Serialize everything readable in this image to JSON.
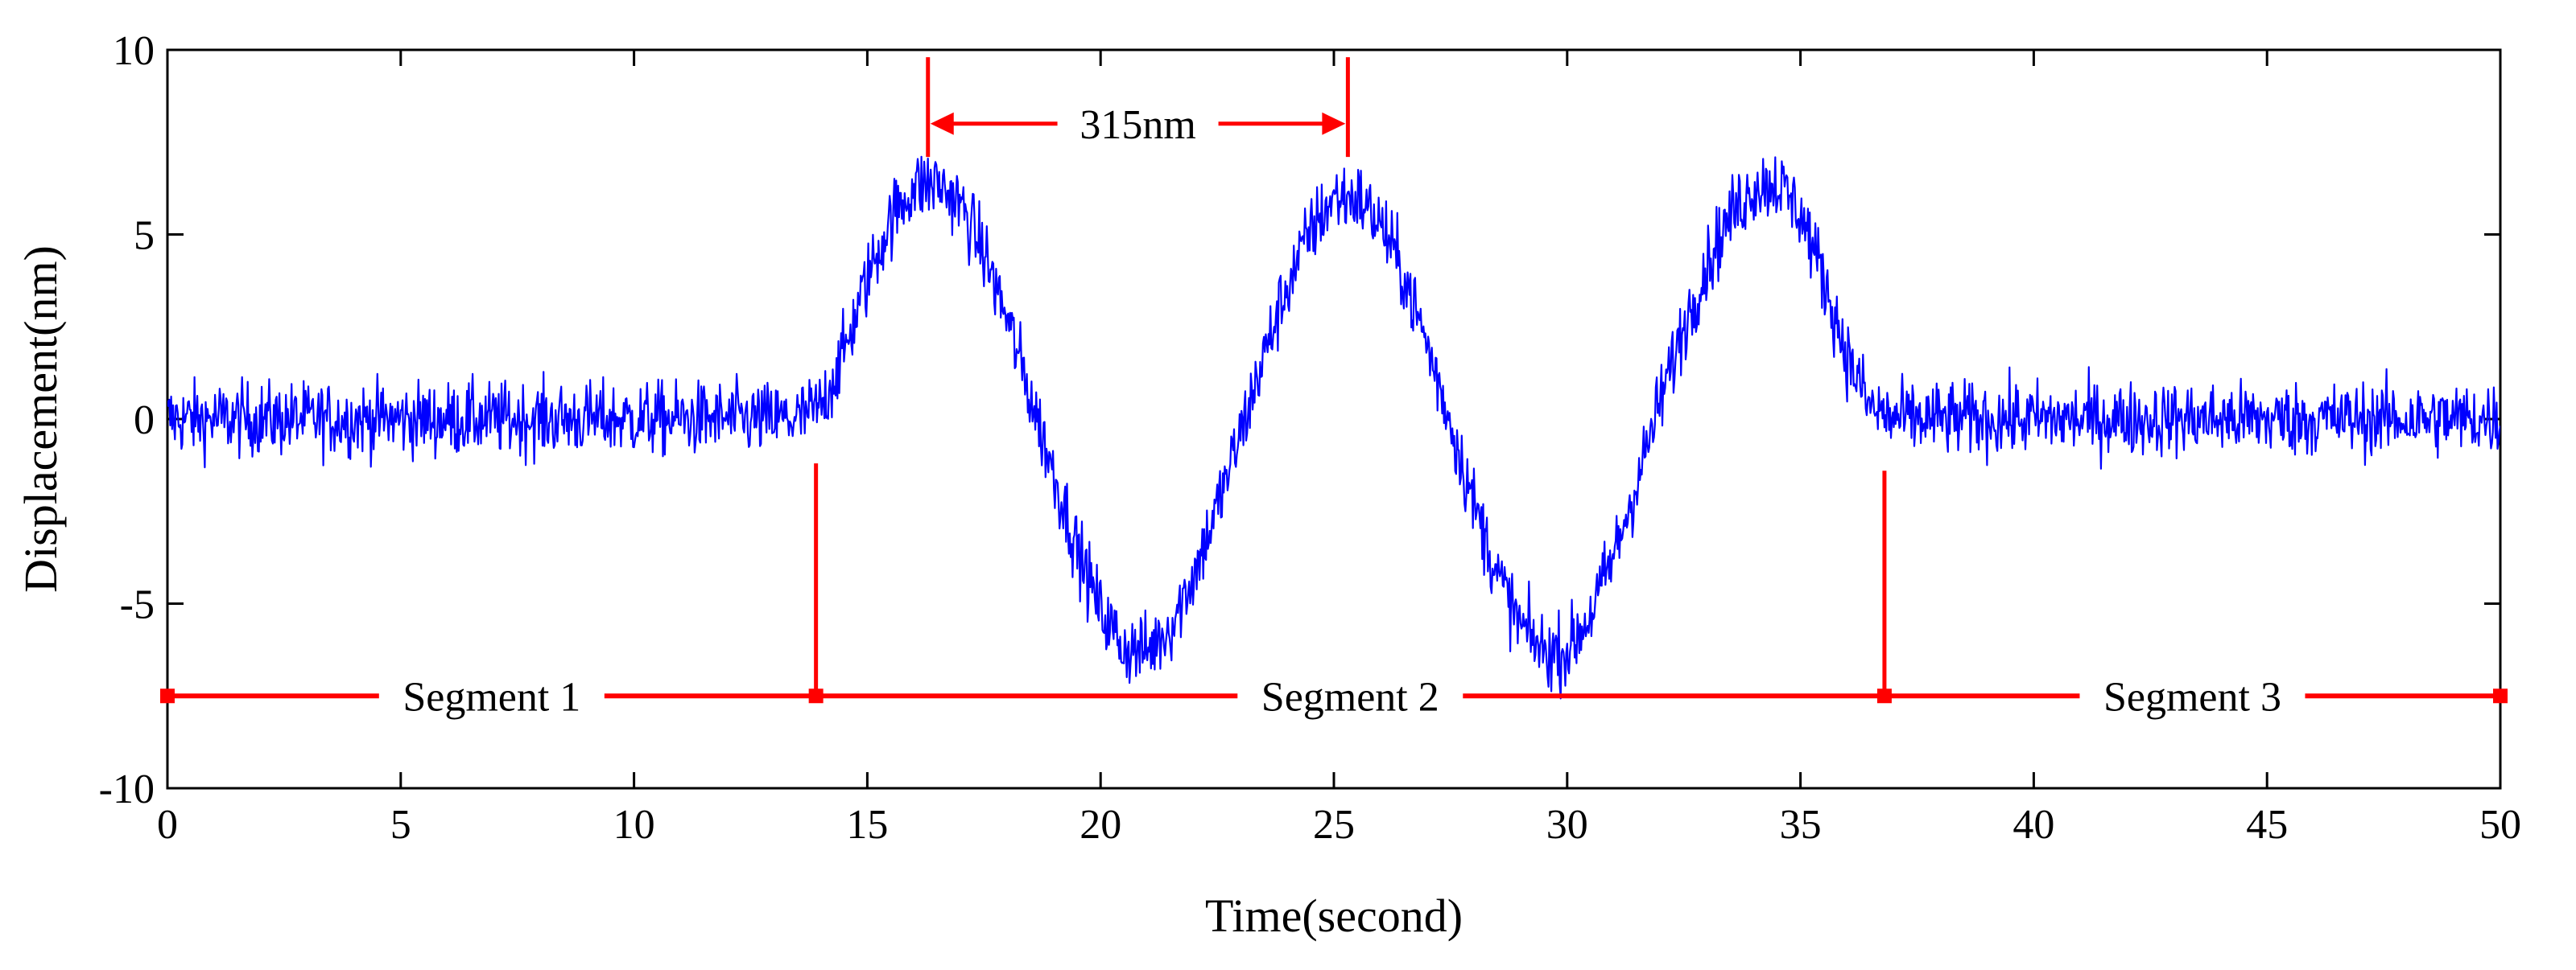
{
  "chart_data": {
    "type": "line",
    "title": "",
    "xlabel": "Time(second)",
    "ylabel": "Displacement(nm)",
    "xlim": [
      0,
      50
    ],
    "ylim": [
      -10,
      10
    ],
    "grid": false,
    "x_ticks": [
      0,
      5,
      10,
      15,
      20,
      25,
      30,
      35,
      40,
      45,
      50
    ],
    "x_tick_labels": [
      "0",
      "5",
      "10",
      "15",
      "20",
      "25",
      "30",
      "35",
      "40",
      "45",
      "50"
    ],
    "y_ticks": [
      -10,
      -5,
      0,
      5,
      10
    ],
    "y_tick_labels": [
      "-10",
      "-5",
      "0",
      "5",
      "10"
    ],
    "series": [
      {
        "name": "displacement",
        "color": "#0000ff",
        "sample_step": 0.02,
        "noise_amplitude": 1.1,
        "envelope": {
          "x": [
            0,
            13.5,
            14,
            14.5,
            15,
            15.5,
            16,
            16.5,
            17,
            17.5,
            18,
            18.5,
            19,
            19.5,
            20,
            20.5,
            21,
            21.5,
            22,
            22.5,
            23,
            23.5,
            24,
            24.5,
            25,
            25.5,
            26,
            26.5,
            27,
            27.5,
            28,
            28.5,
            29,
            29.5,
            30,
            30.5,
            31,
            31.5,
            32,
            32.5,
            33,
            33.5,
            34,
            34.5,
            35,
            35.5,
            36,
            36.5,
            37,
            50
          ],
          "y": [
            0,
            0,
            0.3,
            1.8,
            3.8,
            5.4,
            6.3,
            6.4,
            5.8,
            4.5,
            2.7,
            0.6,
            -1.5,
            -3.5,
            -5.2,
            -6.2,
            -6.3,
            -5.6,
            -4.2,
            -2.4,
            -0.4,
            1.7,
            3.6,
            5.1,
            6.0,
            6.0,
            5.3,
            3.9,
            2.0,
            -0.1,
            -2.3,
            -4.2,
            -5.6,
            -6.3,
            -6.3,
            -5.3,
            -3.7,
            -1.7,
            0.5,
            2.5,
            4.2,
            5.5,
            6.3,
            6.4,
            5.6,
            3.8,
            1.7,
            0.3,
            0,
            0
          ]
        }
      }
    ],
    "segments": [
      {
        "label": "Segment 1",
        "x_start": 0,
        "x_end": 13.9
      },
      {
        "label": "Segment 2",
        "x_start": 13.9,
        "x_end": 36.8
      },
      {
        "label": "Segment 3",
        "x_start": 36.8,
        "x_end": 50
      }
    ],
    "segment_line_y": -7.5,
    "segment_boundaries": [
      {
        "x": 13.9,
        "y_top": -1.2
      },
      {
        "x": 36.8,
        "y_top": -1.4
      }
    ],
    "peak_span": {
      "label": "315nm",
      "x_start": 16.3,
      "x_end": 25.3,
      "y_arrow": 8.0,
      "y_top": 9.8,
      "y_bottom": 7.1
    },
    "annotation_color": "#ff0000"
  }
}
